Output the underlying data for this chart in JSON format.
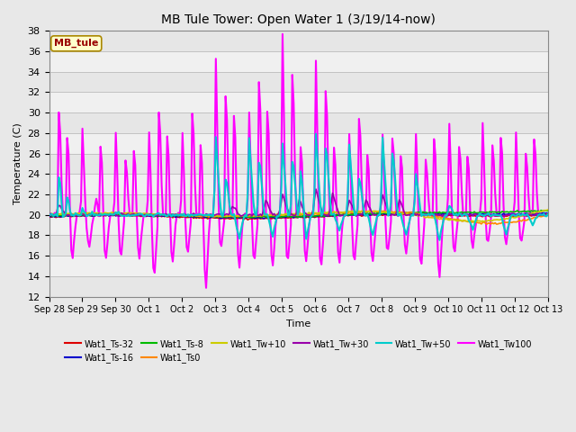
{
  "title": "MB Tule Tower: Open Water 1 (3/19/14-now)",
  "xlabel": "Time",
  "ylabel": "Temperature (C)",
  "ylim": [
    12,
    38
  ],
  "yticks": [
    12,
    14,
    16,
    18,
    20,
    22,
    24,
    26,
    28,
    30,
    32,
    34,
    36,
    38
  ],
  "xtick_labels": [
    "Sep 28",
    "Sep 29",
    "Sep 30",
    "Oct 1",
    "Oct 2",
    "Oct 3",
    "Oct 4",
    "Oct 5",
    "Oct 6",
    "Oct 7",
    "Oct 8",
    "Oct 9",
    "Oct 10",
    "Oct 11",
    "Oct 12",
    "Oct 13"
  ],
  "legend_label": "MB_tule",
  "legend_box_facecolor": "#ffffcc",
  "legend_box_edgecolor": "#aa8800",
  "legend_text_color": "#990000",
  "background_color": "#e8e8e8",
  "plot_bg_color": "#f0f0f0",
  "series_order": [
    "Wat1_Ts-32",
    "Wat1_Ts-16",
    "Wat1_Ts-8",
    "Wat1_Ts0",
    "Wat1_Tw+10",
    "Wat1_Tw+30",
    "Wat1_Tw+50",
    "Wat1_Tw100"
  ],
  "series": {
    "Wat1_Ts-32": {
      "color": "#dd0000",
      "lw": 1.2
    },
    "Wat1_Ts-16": {
      "color": "#0000cc",
      "lw": 1.2
    },
    "Wat1_Ts-8": {
      "color": "#00bb00",
      "lw": 1.2
    },
    "Wat1_Ts0": {
      "color": "#ff8800",
      "lw": 1.2
    },
    "Wat1_Tw+10": {
      "color": "#cccc00",
      "lw": 1.2
    },
    "Wat1_Tw+30": {
      "color": "#9900aa",
      "lw": 1.2
    },
    "Wat1_Tw+50": {
      "color": "#00cccc",
      "lw": 1.5
    },
    "Wat1_Tw100": {
      "color": "#ff00ff",
      "lw": 1.5
    }
  }
}
